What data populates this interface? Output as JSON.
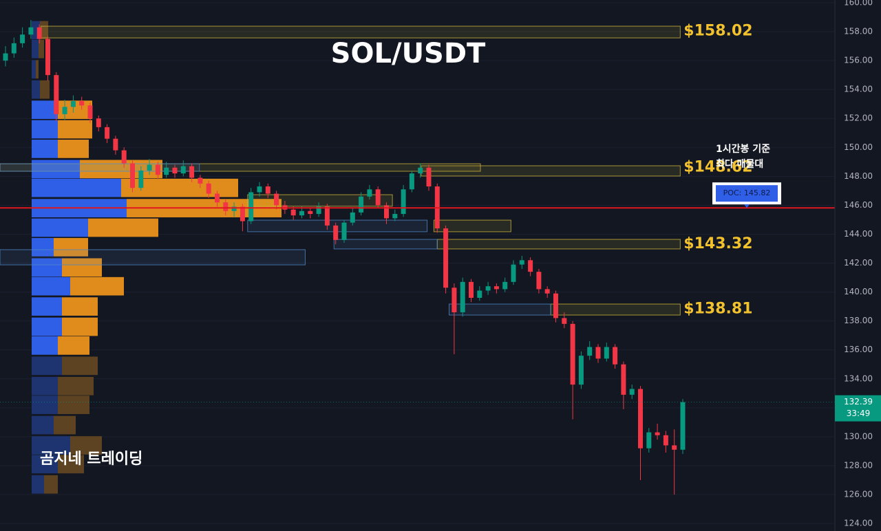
{
  "chart_data": {
    "type": "candlestick",
    "title": "SOL/USDT",
    "watermark": "곰지네 트레이딩",
    "ylim": [
      123.48,
      160.19
    ],
    "yticks": [
      {
        "value": 124,
        "label": "124.00"
      },
      {
        "value": 126,
        "label": "126.00"
      },
      {
        "value": 128,
        "label": "128.00"
      },
      {
        "value": 130,
        "label": "130.00"
      },
      {
        "value": 132,
        "label": "132.00"
      },
      {
        "value": 134,
        "label": "134.00"
      },
      {
        "value": 136,
        "label": "136.00"
      },
      {
        "value": 138,
        "label": "138.00"
      },
      {
        "value": 140,
        "label": "140.00"
      },
      {
        "value": 142,
        "label": "142.00"
      },
      {
        "value": 144,
        "label": "144.00"
      },
      {
        "value": 146,
        "label": "146.00"
      },
      {
        "value": 148,
        "label": "148.00"
      },
      {
        "value": 150,
        "label": "150.00"
      },
      {
        "value": 152,
        "label": "152.00"
      },
      {
        "value": 154,
        "label": "154.00"
      },
      {
        "value": 156,
        "label": "156.00"
      },
      {
        "value": 158,
        "label": "158.00"
      },
      {
        "value": 160,
        "label": "160.00"
      }
    ],
    "grid": true,
    "up_color": "#089981",
    "down_color": "#f23645",
    "open": [
      156.0,
      156.5,
      157.2,
      157.8,
      158.3,
      157.5,
      155.0,
      152.3,
      152.8,
      153.2,
      152.9,
      152.0,
      151.4,
      150.6,
      149.8,
      148.9,
      147.2,
      148.4,
      148.8,
      148.1,
      148.6,
      148.2,
      148.7,
      147.9,
      147.5,
      146.8,
      146.2,
      145.6,
      145.9,
      144.9,
      146.9,
      147.3,
      146.8,
      146.0,
      145.7,
      145.3,
      145.6,
      145.4,
      145.9,
      144.6,
      143.6,
      144.8,
      145.5,
      146.6,
      147.1,
      146.0,
      145.1,
      145.4,
      147.1,
      148.2,
      148.6,
      147.3,
      144.4,
      140.3,
      138.6,
      140.7,
      139.6,
      140.1,
      140.4,
      140.2,
      140.7,
      141.9,
      142.2,
      141.4,
      140.2,
      139.9,
      138.2,
      137.8,
      133.6,
      135.6,
      136.2,
      135.4,
      136.2,
      135.0,
      132.9,
      133.3,
      129.2,
      130.3,
      130.1,
      129.4,
      129.1
    ],
    "high": [
      157.0,
      157.6,
      158.3,
      158.8,
      158.5,
      157.7,
      155.2,
      153.3,
      153.6,
      153.5,
      153.1,
      152.2,
      151.6,
      150.8,
      150.0,
      149.1,
      148.7,
      149.2,
      149.0,
      149.0,
      148.8,
      149.1,
      148.9,
      148.1,
      147.7,
      147.0,
      146.4,
      146.2,
      146.1,
      147.2,
      147.6,
      147.5,
      147.0,
      146.3,
      145.9,
      145.9,
      145.8,
      146.2,
      146.1,
      144.8,
      145.0,
      145.8,
      146.9,
      147.4,
      147.3,
      146.2,
      145.7,
      147.4,
      148.4,
      148.9,
      148.8,
      147.5,
      144.6,
      140.6,
      141.0,
      140.9,
      140.4,
      140.7,
      140.6,
      141.0,
      142.2,
      142.5,
      142.4,
      141.6,
      140.4,
      140.1,
      138.6,
      138.0,
      135.9,
      136.6,
      136.4,
      136.5,
      136.4,
      135.2,
      133.6,
      133.5,
      130.6,
      130.9,
      130.4,
      130.5,
      132.6
    ],
    "low": [
      155.6,
      156.2,
      156.9,
      157.5,
      157.2,
      154.6,
      151.8,
      151.9,
      152.4,
      152.6,
      151.7,
      151.1,
      150.3,
      149.5,
      148.6,
      146.9,
      147.0,
      148.1,
      147.8,
      147.9,
      147.9,
      148.0,
      147.6,
      147.2,
      146.5,
      145.9,
      145.3,
      145.2,
      144.2,
      144.7,
      146.6,
      146.5,
      145.7,
      145.4,
      145.0,
      145.1,
      145.1,
      145.2,
      144.3,
      143.3,
      143.4,
      144.6,
      145.3,
      146.4,
      145.8,
      144.7,
      144.9,
      145.2,
      146.9,
      147.9,
      147.0,
      144.1,
      139.9,
      135.7,
      138.3,
      139.3,
      139.4,
      139.8,
      139.9,
      140.0,
      140.5,
      141.6,
      141.1,
      139.9,
      139.6,
      137.9,
      137.5,
      131.2,
      133.3,
      135.3,
      135.1,
      135.2,
      134.7,
      131.9,
      132.6,
      127.0,
      128.9,
      129.8,
      128.9,
      126.0,
      128.8
    ],
    "close": [
      156.5,
      157.2,
      157.8,
      158.3,
      157.5,
      155.0,
      152.3,
      152.8,
      153.2,
      152.9,
      152.0,
      151.4,
      150.6,
      149.8,
      148.9,
      147.2,
      148.4,
      148.8,
      148.1,
      148.6,
      148.2,
      148.7,
      147.9,
      147.5,
      146.8,
      146.2,
      145.6,
      145.9,
      144.9,
      146.9,
      147.3,
      146.8,
      146.0,
      145.7,
      145.3,
      145.6,
      145.4,
      145.9,
      144.6,
      143.6,
      144.8,
      145.5,
      146.6,
      147.1,
      146.0,
      145.1,
      145.4,
      147.1,
      148.2,
      148.6,
      147.3,
      144.4,
      140.3,
      138.6,
      140.7,
      139.6,
      140.1,
      140.4,
      140.2,
      140.7,
      141.9,
      142.2,
      141.4,
      140.2,
      139.9,
      138.2,
      137.8,
      133.6,
      135.6,
      136.2,
      135.4,
      136.2,
      135.0,
      132.9,
      133.3,
      129.2,
      130.3,
      130.1,
      129.4,
      129.1,
      132.39
    ],
    "zones": [
      {
        "start": 4.2,
        "end": 79.7,
        "low": 157.57,
        "high": 158.38,
        "color": "#c9b23a",
        "label": {
          "value": 158.02,
          "label": "$158.02"
        }
      },
      {
        "start": -0.65,
        "end": 56.1,
        "low": 148.35,
        "high": 148.87,
        "color": "#c9b23a"
      },
      {
        "start": 49.1,
        "end": 79.7,
        "low": 148.02,
        "high": 148.73,
        "color": "#c9b23a",
        "label": {
          "value": 148.62,
          "label": "$148.62"
        }
      },
      {
        "start": 28.6,
        "end": 45.7,
        "low": 145.93,
        "high": 146.73,
        "color": "#c9b23a"
      },
      {
        "start": 50.6,
        "end": 59.7,
        "low": 144.17,
        "high": 144.97,
        "color": "#c9b23a"
      },
      {
        "start": 51.0,
        "end": 79.7,
        "low": 142.98,
        "high": 143.64,
        "color": "#c9b23a",
        "label": {
          "value": 143.32,
          "label": "$143.32"
        }
      },
      {
        "start": 64.4,
        "end": 79.7,
        "low": 138.41,
        "high": 139.17,
        "color": "#c9b23a",
        "label": {
          "value": 138.81,
          "label": "$138.81"
        }
      },
      {
        "start": -0.65,
        "end": 35.4,
        "low": 141.88,
        "high": 142.93,
        "color": "#4f86c6"
      },
      {
        "start": 28.6,
        "end": 49.8,
        "low": 144.17,
        "high": 144.97,
        "color": "#4f86c6"
      },
      {
        "start": 38.8,
        "end": 51.0,
        "low": 142.98,
        "high": 143.64,
        "color": "#4f86c6"
      },
      {
        "start": 52.4,
        "end": 64.4,
        "low": 138.41,
        "high": 139.17,
        "color": "#4f86c6"
      },
      {
        "start": -0.65,
        "end": 22.9,
        "low": 148.35,
        "high": 148.87,
        "color": "#4f86c6"
      }
    ],
    "volume_profile": {
      "prices": [
        158.1,
        156.8,
        155.4,
        154.0,
        152.6,
        151.25,
        149.9,
        148.5,
        147.2,
        145.8,
        144.45,
        143.1,
        141.7,
        140.4,
        139.0,
        137.6,
        136.3,
        134.9,
        133.5,
        132.2,
        130.8,
        129.4,
        128.1,
        126.7
      ],
      "buy": [
        12,
        10,
        6,
        12,
        38,
        38,
        38,
        70,
        130,
        138,
        82,
        32,
        44,
        56,
        44,
        44,
        38,
        44,
        38,
        38,
        32,
        56,
        38,
        18
      ],
      "sell": [
        12,
        8,
        4,
        14,
        50,
        50,
        45,
        120,
        170,
        225,
        102,
        50,
        58,
        78,
        52,
        52,
        46,
        52,
        52,
        46,
        32,
        46,
        38,
        20
      ],
      "bin_size": 1.365,
      "value_area": [
        135.6,
        153.3
      ],
      "buy_color": "#2f5fe6",
      "sell_color": "#e08c1c",
      "buy_color_dim": "#1e3470",
      "sell_color_dim": "#5e4322"
    },
    "poc": {
      "value": 145.82,
      "label": "POC: 145.82",
      "color": "#e0161e"
    },
    "poc_note": [
      "1시간봉 기준",
      "최다 매물대"
    ],
    "current_price": {
      "value": 132.39,
      "label": "132.39"
    },
    "countdown": "33:49"
  }
}
